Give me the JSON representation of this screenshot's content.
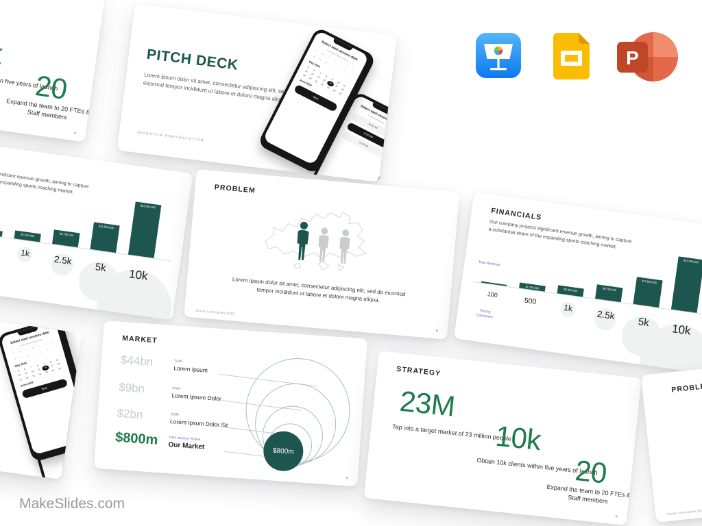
{
  "brand": {
    "label": "MakeSlides.com"
  },
  "app_icons": {
    "keynote": "Apple Keynote",
    "google_slides": "Google Slides",
    "powerpoint": "Microsoft PowerPoint"
  },
  "colors": {
    "teal_fill": "#1d564e",
    "stat_green": "#1e7b4c",
    "cover_title_teal": "#19564c",
    "label_blue": "#5b66d2",
    "muted_gray_value": "#c7ccd1"
  },
  "slides": {
    "cover": {
      "title": "PITCH DECK",
      "body": "Lorem ipsum dolor sit amet, consectetur adipiscing elit, sed do eiusmod tempor incididunt ut labore et dolore magna aliqua",
      "footer": "INVESTOR PRESENTATION"
    },
    "phone_date": {
      "title": "Select start session date",
      "subtitle": "Lorem ipsum dolor sit amet",
      "weekdays": [
        "S",
        "M",
        "T",
        "W",
        "T",
        "F",
        "S"
      ],
      "leading_row": [
        "28",
        "29",
        "30",
        "1",
        "2",
        "3",
        "4"
      ],
      "month1": "May 2024",
      "days": [
        "5",
        "6",
        "7",
        "8",
        "9",
        "10",
        "11",
        "12",
        "13",
        "14",
        "15",
        "16",
        "17",
        "18",
        "19",
        "20",
        "21",
        "22",
        "23",
        "24",
        "25"
      ],
      "selected_day": "16",
      "month2": "June 2024",
      "cta": "Next"
    },
    "phone_time": {
      "title": "Select start session time",
      "subtitle": "Lorem ipsum dolor sit",
      "options": [
        "10:00 AM",
        "10:30 AM",
        "11:00 AM"
      ]
    },
    "problem": {
      "title": "PROBLEM",
      "body": "Lorem ipsum dolor sit amet, consectetur adipiscing elit, sed do eiusmod tempor incididunt ut labore et dolore magna aliqua.",
      "source": "Source: Lorem Ipsum (2024)"
    },
    "financials": {
      "title": "FINANCIALS",
      "description": "Our company projects significant revenue growth, aiming to capture a substantial share of the expanding sports coaching market."
    },
    "market": {
      "title": "MARKET",
      "rows": [
        {
          "value": "$44bn",
          "tag": "TAM",
          "label": "Lorem Ipsum"
        },
        {
          "value": "$9bn",
          "tag": "SAM",
          "label": "Lorem Ipsum Dolor"
        },
        {
          "value": "$2bn",
          "tag": "SOM",
          "label": "Lorem Ipsum Dolor Sit"
        },
        {
          "value": "$800m",
          "tag": "10% Market Share",
          "label": "Our Market"
        }
      ],
      "bubble_label": "$800m"
    },
    "strategy": {
      "title": "STRATEGY",
      "stats": [
        {
          "value": "23M",
          "caption": "Tap into a target market of 23 million people"
        },
        {
          "value": "10k",
          "caption": "Obtain 10k clients within five years of launch"
        },
        {
          "value": "20",
          "caption": "Expand the team to 20 FTEs & Staff members"
        }
      ]
    }
  },
  "chart_data": {
    "type": "bar",
    "title": "FINANCIALS",
    "categories": [
      "100",
      "500",
      "1k",
      "2.5k",
      "5k",
      "10k"
    ],
    "values": [
      230000,
      1150000,
      2300000,
      5750000,
      11500000,
      23000000
    ],
    "value_labels": [
      "",
      "$1,150,000",
      "$2,300,000",
      "$5,750,000",
      "$11,500,000",
      "$23,000,000"
    ],
    "ylabel": "Total Revenue",
    "xlabel": "Paying Customers",
    "ylim": [
      0,
      23000000
    ],
    "grid": false,
    "legend": false
  }
}
